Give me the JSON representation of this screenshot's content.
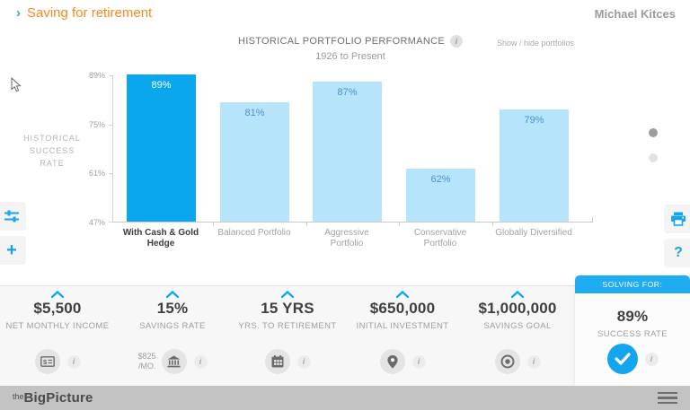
{
  "header": {
    "chevron": "›",
    "title": "Saving for retirement",
    "user": "Michael Kitces"
  },
  "chart": {
    "info_icon": "i",
    "show_hide": "Show / hide portfolios",
    "y_axis_label_lines": {
      "l0": "HISTORICAL",
      "l1": "SUCCESS",
      "l2": "RATE"
    }
  },
  "chart_data": {
    "type": "bar",
    "title": "HISTORICAL PORTFOLIO PERFORMANCE",
    "subtitle": "1926 to Present",
    "ylabel": "HISTORICAL SUCCESS RATE",
    "categories": [
      "With Cash & Gold Hedge",
      "Balanced Portfolio",
      "Aggressive Portfolio",
      "Conservative Portfolio",
      "Globally Diversified"
    ],
    "values": [
      89,
      81,
      87,
      62,
      79
    ],
    "value_labels": [
      "89%",
      "81%",
      "87%",
      "62%",
      "79%"
    ],
    "ylim": [
      47,
      89
    ],
    "y_ticks": [
      "89%",
      "75%",
      "61%",
      "47%"
    ],
    "grid": false,
    "highlight_index": 0,
    "colors": {
      "highlight": "#0aa7ef",
      "normal": "#b5e4fb",
      "highlight_label": "#ffffff",
      "normal_label": "#4d92cc"
    }
  },
  "pagination": {
    "dot_count": 2,
    "active_dot": 0
  },
  "parameters": [
    {
      "value": "$5,500",
      "label": "NET MONTHLY INCOME",
      "icon": "money-check-icon"
    },
    {
      "value": "15%",
      "label": "SAVINGS RATE",
      "icon": "bank-icon",
      "sub_line1": "$825",
      "sub_line2": "/MO."
    },
    {
      "value": "15 YRS",
      "label": "YRS. TO RETIREMENT",
      "icon": "calendar-icon"
    },
    {
      "value": "$650,000",
      "label": "INITIAL INVESTMENT",
      "icon": "location-pin-icon"
    },
    {
      "value": "$1,000,000",
      "label": "SAVINGS GOAL",
      "icon": "target-icon"
    }
  ],
  "solving_for": {
    "header": "SOLVING FOR:",
    "value": "89%",
    "label": "SUCCESS RATE",
    "icon": "check-icon",
    "info_icon": "i"
  },
  "footer": {
    "logo_the": "the",
    "logo_name": "BigPicture"
  }
}
